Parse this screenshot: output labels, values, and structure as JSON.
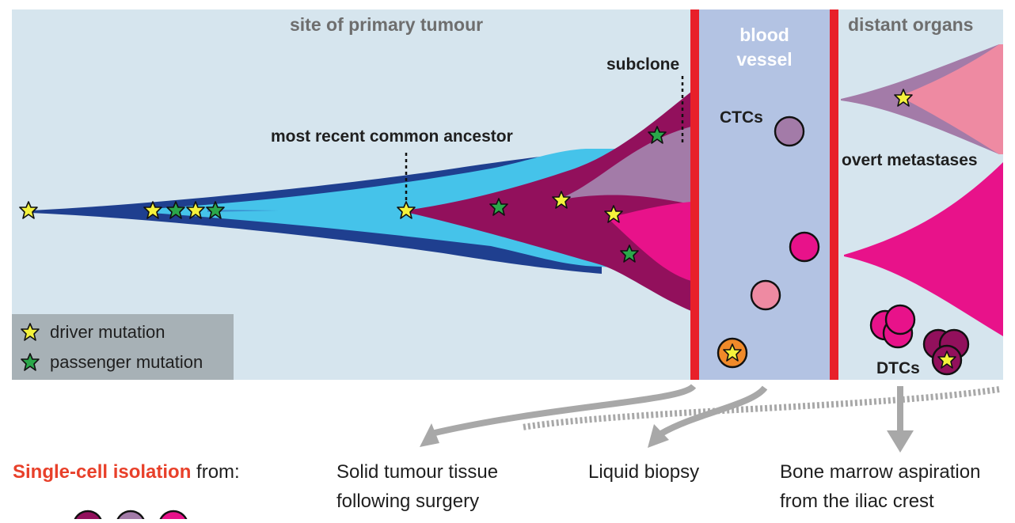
{
  "regions": {
    "primary_title": "site of primary tumour",
    "vessel_title_line1": "blood",
    "vessel_title_line2": "vessel",
    "distant_title": "distant organs"
  },
  "annotations": {
    "subclone": "subclone",
    "mrca": "most recent common ancestor",
    "ctcs": "CTCs",
    "overt": "overt metastases",
    "dtcs": "DTCs"
  },
  "legend": {
    "driver": "driver mutation",
    "passenger": "passenger mutation"
  },
  "footer": {
    "lead_highlight": "Single-cell isolation",
    "lead_rest": " from:",
    "col1_line1": "Solid tumour tissue",
    "col1_line2": "following surgery",
    "col2_line1": "Liquid biopsy",
    "col3_line1": "Bone marrow aspiration",
    "col3_line2": "from the iliac crest"
  },
  "colors": {
    "background": "#d6e5ee",
    "vessel": "#b3c3e3",
    "vessel_wall": "#e8202a",
    "dark_blue": "#1f3f8f",
    "light_blue": "#45c3ea",
    "dark_purple": "#92105c",
    "light_purple": "#a37ba8",
    "magenta": "#e8128a",
    "pink": "#ee8aa2",
    "driver_star": "#f4f23c",
    "passenger_star": "#2ba84a",
    "legend_box": "#a7b1b6",
    "highlight_text": "#e8402a",
    "arrow_gray": "#a8a8a8"
  }
}
